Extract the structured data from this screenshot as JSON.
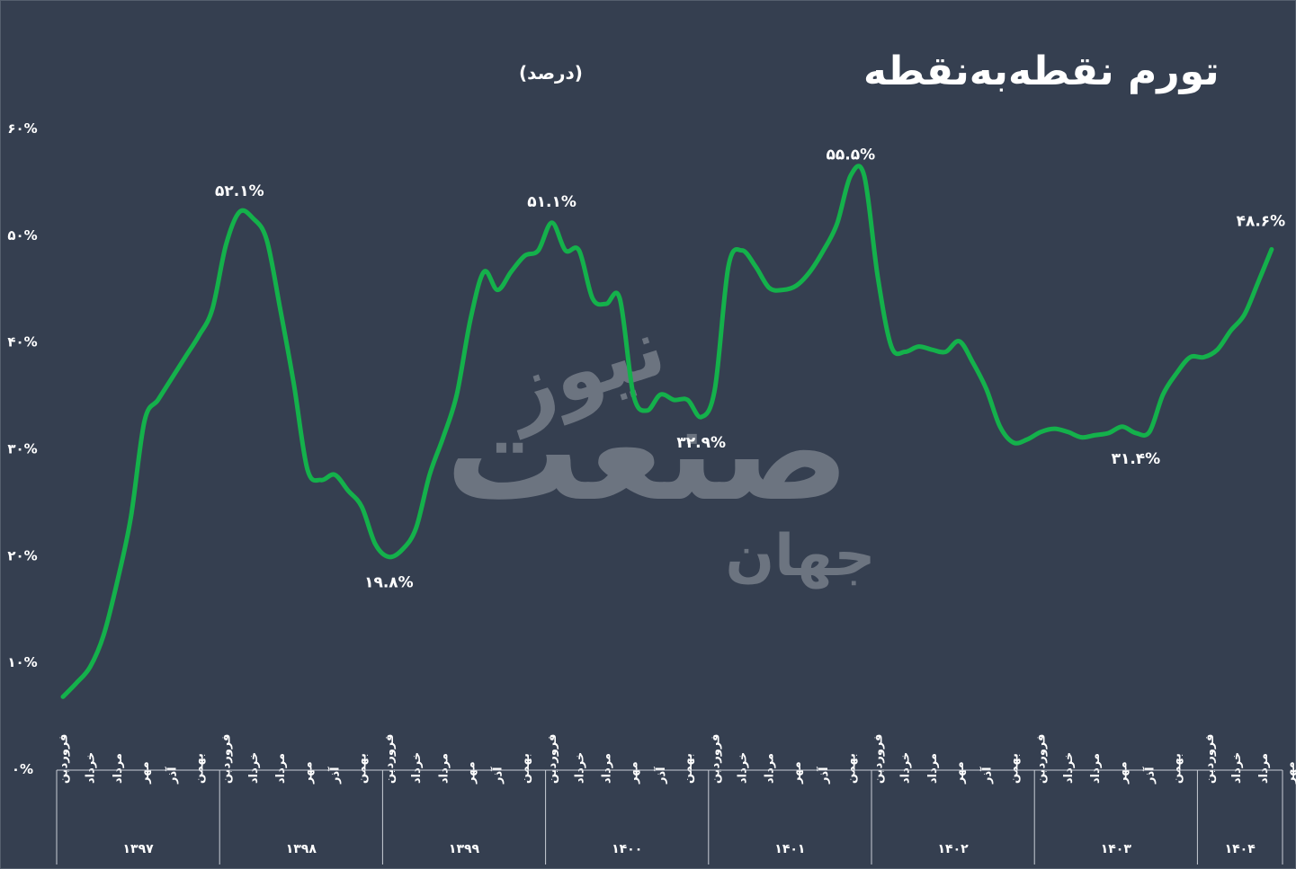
{
  "chart_data": {
    "type": "line",
    "title": "تورم نقطه‌به‌نقطه",
    "subtitle": "(درصد)",
    "xlabel": "",
    "ylabel": "",
    "ylim": [
      0,
      60
    ],
    "y_ticks": [
      "۰%",
      "۱۰%",
      "۲۰%",
      "۳۰%",
      "۴۰%",
      "۵۰%",
      "۶۰%"
    ],
    "grid": false,
    "line_color": "#14b14b",
    "years": [
      {
        "label": "۱۳۹۷",
        "months": [
          "فروردین",
          "خرداد",
          "مرداد",
          "مهر",
          "آذر",
          "بهمن"
        ]
      },
      {
        "label": "۱۳۹۸",
        "months": [
          "فروردین",
          "خرداد",
          "مرداد",
          "مهر",
          "آذر",
          "بهمن"
        ]
      },
      {
        "label": "۱۳۹۹",
        "months": [
          "فروردین",
          "خرداد",
          "مرداد",
          "مهر",
          "آذر",
          "بهمن"
        ]
      },
      {
        "label": "۱۴۰۰",
        "months": [
          "فروردین",
          "خرداد",
          "مرداد",
          "مهر",
          "آذر",
          "بهمن"
        ]
      },
      {
        "label": "۱۴۰۱",
        "months": [
          "فروردین",
          "خرداد",
          "مرداد",
          "مهر",
          "آذر",
          "بهمن"
        ]
      },
      {
        "label": "۱۴۰۲",
        "months": [
          "فروردین",
          "خرداد",
          "مرداد",
          "مهر",
          "آذر",
          "بهمن"
        ]
      },
      {
        "label": "۱۴۰۳",
        "months": [
          "فروردین",
          "خرداد",
          "مرداد",
          "مهر",
          "آذر",
          "بهمن"
        ]
      },
      {
        "label": "۱۴۰۴",
        "months": [
          "فروردین",
          "خرداد",
          "مرداد",
          "مهر"
        ]
      }
    ],
    "series": [
      {
        "values": [
          6.7,
          8.0,
          9.5,
          12.5,
          17.5,
          23.5,
          32.5,
          34.5,
          36.5,
          38.5,
          40.5,
          43.0,
          49.0,
          52.1,
          51.5,
          49.5,
          43.0,
          36.0,
          28.0,
          27.0,
          27.5,
          26.0,
          24.5,
          21.0,
          19.8,
          20.5,
          22.5,
          27.5,
          31.0,
          35.0,
          42.0,
          46.5,
          44.8,
          46.5,
          48.0,
          48.5,
          51.1,
          48.5,
          48.5,
          44.0,
          43.5,
          44.0,
          35.0,
          33.5,
          35.0,
          34.5,
          34.5,
          32.9,
          35.5,
          47.0,
          48.5,
          47.0,
          45.0,
          44.8,
          45.2,
          46.5,
          48.5,
          51.0,
          55.5,
          55.5,
          46.0,
          39.5,
          39.0,
          39.5,
          39.2,
          39.0,
          40.0,
          38.0,
          35.5,
          32.0,
          30.5,
          30.8,
          31.5,
          31.8,
          31.5,
          31.0,
          31.2,
          31.4,
          32.0,
          31.4,
          31.5,
          35.0,
          37.0,
          38.5,
          38.5,
          39.2,
          41.0,
          42.5,
          45.5,
          48.6
        ]
      }
    ],
    "annotations": [
      {
        "index": 13,
        "text": "۵۲.۱%"
      },
      {
        "index": 24,
        "text": "۱۹.۸%"
      },
      {
        "index": 36,
        "text": "۵۱.۱%"
      },
      {
        "index": 47,
        "text": "۳۲.۹%"
      },
      {
        "index": 58,
        "text": "۵۵.۵%"
      },
      {
        "index": 79,
        "text": "۳۱.۴%"
      },
      {
        "index": 89,
        "text": "۴۸.۶%"
      }
    ]
  },
  "watermark": {
    "lines": [
      "نیوز",
      "صنعت",
      "جهان"
    ]
  }
}
